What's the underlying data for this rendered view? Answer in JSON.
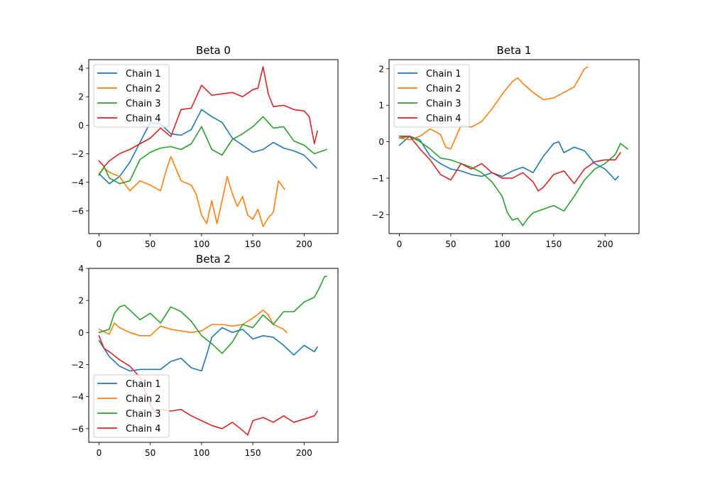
{
  "colors": {
    "Chain 1": "#1f77b4",
    "Chain 2": "#ff7f0e",
    "Chain 3": "#2ca02c",
    "Chain 4": "#d62728"
  },
  "chart_data": [
    {
      "type": "line",
      "title": "Beta 0",
      "xlabel": "",
      "ylabel": "",
      "xlim": [
        -10,
        233
      ],
      "ylim": [
        -7.6,
        4.6
      ],
      "xticks": [
        0,
        50,
        100,
        150,
        200
      ],
      "yticks": [
        -6,
        -4,
        -2,
        0,
        2,
        4
      ],
      "legend_position": "upper-left",
      "series": [
        {
          "name": "Chain 1",
          "x": [
            0,
            10,
            20,
            30,
            40,
            50,
            60,
            70,
            80,
            90,
            100,
            110,
            120,
            130,
            140,
            150,
            160,
            170,
            180,
            190,
            200,
            212
          ],
          "y": [
            -3.4,
            -4.1,
            -3.6,
            -2.6,
            -1.2,
            0.2,
            0.1,
            -0.6,
            -0.7,
            -0.3,
            1.1,
            0.6,
            0.2,
            -0.9,
            -1.4,
            -1.9,
            -1.7,
            -1.2,
            -1.6,
            -1.8,
            -2.1,
            -3.0
          ]
        },
        {
          "name": "Chain 2",
          "x": [
            0,
            5,
            10,
            20,
            30,
            40,
            50,
            60,
            65,
            70,
            80,
            90,
            95,
            100,
            105,
            110,
            115,
            120,
            125,
            130,
            135,
            140,
            145,
            150,
            155,
            160,
            165,
            170,
            175,
            181
          ],
          "y": [
            -3.4,
            -3.0,
            -3.3,
            -3.6,
            -4.6,
            -3.9,
            -4.2,
            -4.6,
            -3.3,
            -2.2,
            -3.9,
            -4.2,
            -4.9,
            -6.3,
            -6.9,
            -5.3,
            -6.9,
            -5.3,
            -3.6,
            -4.8,
            -5.7,
            -5.0,
            -6.3,
            -6.6,
            -5.9,
            -7.1,
            -6.5,
            -6.1,
            -3.9,
            -4.5
          ]
        },
        {
          "name": "Chain 3",
          "x": [
            0,
            5,
            10,
            15,
            20,
            30,
            40,
            50,
            60,
            70,
            80,
            90,
            100,
            110,
            120,
            130,
            140,
            150,
            160,
            170,
            180,
            190,
            200,
            210,
            222
          ],
          "y": [
            -3.5,
            -2.9,
            -3.7,
            -3.9,
            -4.1,
            -3.9,
            -2.4,
            -1.9,
            -1.6,
            -1.5,
            -1.7,
            -1.3,
            -0.1,
            -1.7,
            -2.1,
            -1.0,
            -0.6,
            -0.1,
            0.6,
            -0.2,
            -0.1,
            -1.1,
            -1.4,
            -2.0,
            -1.7
          ]
        },
        {
          "name": "Chain 4",
          "x": [
            0,
            5,
            10,
            20,
            30,
            40,
            50,
            60,
            70,
            80,
            90,
            100,
            110,
            120,
            130,
            140,
            150,
            155,
            160,
            165,
            170,
            180,
            190,
            200,
            205,
            210,
            213
          ],
          "y": [
            -2.5,
            -2.9,
            -2.5,
            -2.0,
            -1.7,
            -1.3,
            -0.9,
            -0.2,
            -0.8,
            1.1,
            1.2,
            2.8,
            2.1,
            2.2,
            2.3,
            2.0,
            2.5,
            2.6,
            4.1,
            2.2,
            1.3,
            1.4,
            1.1,
            1.0,
            0.6,
            -1.3,
            -0.4
          ]
        }
      ]
    },
    {
      "type": "line",
      "title": "Beta 1",
      "xlabel": "",
      "ylabel": "",
      "xlim": [
        -10,
        233
      ],
      "ylim": [
        -2.52,
        2.25
      ],
      "xticks": [
        0,
        50,
        100,
        150,
        200
      ],
      "yticks": [
        -2,
        -1,
        0,
        1,
        2
      ],
      "legend_position": "upper-left",
      "series": [
        {
          "name": "Chain 1",
          "x": [
            0,
            10,
            20,
            30,
            40,
            50,
            60,
            70,
            80,
            90,
            100,
            110,
            120,
            130,
            140,
            150,
            155,
            160,
            170,
            180,
            190,
            200,
            210,
            213
          ],
          "y": [
            -0.1,
            0.15,
            0.05,
            -0.4,
            -0.6,
            -0.75,
            -0.8,
            -0.9,
            -0.95,
            -0.85,
            -0.95,
            -0.8,
            -0.7,
            -0.85,
            -0.4,
            -0.05,
            0.0,
            -0.3,
            -0.15,
            -0.25,
            -0.6,
            -0.75,
            -1.05,
            -0.95
          ]
        },
        {
          "name": "Chain 2",
          "x": [
            0,
            10,
            20,
            30,
            40,
            45,
            50,
            60,
            70,
            80,
            90,
            100,
            110,
            115,
            120,
            130,
            140,
            150,
            160,
            170,
            180,
            183
          ],
          "y": [
            0.1,
            0.05,
            0.15,
            0.35,
            0.2,
            -0.15,
            -0.2,
            0.45,
            0.4,
            0.55,
            0.9,
            1.3,
            1.65,
            1.75,
            1.6,
            1.35,
            1.15,
            1.2,
            1.35,
            1.5,
            2.0,
            2.05
          ]
        },
        {
          "name": "Chain 3",
          "x": [
            0,
            10,
            20,
            30,
            40,
            50,
            60,
            70,
            80,
            90,
            100,
            105,
            110,
            115,
            120,
            125,
            130,
            140,
            150,
            160,
            170,
            180,
            190,
            200,
            210,
            215,
            222
          ],
          "y": [
            0.1,
            0.15,
            0.0,
            -0.2,
            -0.45,
            -0.5,
            -0.6,
            -0.7,
            -0.85,
            -1.1,
            -1.5,
            -1.95,
            -2.15,
            -2.1,
            -2.3,
            -2.1,
            -1.95,
            -1.85,
            -1.75,
            -1.9,
            -1.5,
            -1.05,
            -0.75,
            -0.6,
            -0.35,
            -0.05,
            -0.2
          ]
        },
        {
          "name": "Chain 4",
          "x": [
            0,
            10,
            20,
            30,
            40,
            50,
            60,
            70,
            80,
            90,
            100,
            110,
            120,
            130,
            135,
            140,
            150,
            160,
            170,
            180,
            190,
            200,
            210,
            215
          ],
          "y": [
            0.15,
            0.15,
            -0.2,
            -0.5,
            -0.9,
            -1.05,
            -0.6,
            -0.75,
            -0.6,
            -0.85,
            -1.0,
            -1.0,
            -0.85,
            -1.1,
            -1.35,
            -1.25,
            -0.9,
            -0.8,
            -1.15,
            -0.75,
            -0.55,
            -0.5,
            -0.5,
            -0.3
          ]
        }
      ]
    },
    {
      "type": "line",
      "title": "Beta 2",
      "xlabel": "",
      "ylabel": "",
      "xlim": [
        -10,
        233
      ],
      "ylim": [
        -6.85,
        4.0
      ],
      "xticks": [
        0,
        50,
        100,
        150,
        200
      ],
      "yticks": [
        -6,
        -4,
        -2,
        0,
        2,
        4
      ],
      "legend_position": "lower-left",
      "series": [
        {
          "name": "Chain 1",
          "x": [
            0,
            10,
            20,
            30,
            40,
            50,
            60,
            70,
            80,
            90,
            100,
            105,
            110,
            120,
            130,
            140,
            150,
            160,
            170,
            180,
            190,
            200,
            210,
            213
          ],
          "y": [
            -0.5,
            -1.5,
            -2.1,
            -2.4,
            -2.3,
            -2.3,
            -2.3,
            -1.8,
            -1.6,
            -2.2,
            -2.4,
            -1.4,
            -0.3,
            0.3,
            0.0,
            0.2,
            -0.4,
            -0.2,
            -0.3,
            -0.8,
            -1.4,
            -0.8,
            -1.2,
            -0.9
          ]
        },
        {
          "name": "Chain 2",
          "x": [
            0,
            10,
            15,
            20,
            30,
            40,
            50,
            60,
            70,
            80,
            90,
            100,
            110,
            120,
            130,
            140,
            150,
            160,
            165,
            170,
            180,
            183
          ],
          "y": [
            0.2,
            -0.1,
            0.6,
            0.3,
            0.0,
            -0.2,
            -0.2,
            0.4,
            0.2,
            0.1,
            0.0,
            0.1,
            0.5,
            0.5,
            0.4,
            0.5,
            0.9,
            1.4,
            1.1,
            0.5,
            0.2,
            0.0
          ]
        },
        {
          "name": "Chain 3",
          "x": [
            0,
            10,
            15,
            20,
            25,
            30,
            40,
            50,
            60,
            70,
            80,
            90,
            100,
            110,
            120,
            130,
            140,
            150,
            160,
            170,
            180,
            190,
            200,
            210,
            215,
            220,
            222
          ],
          "y": [
            0.0,
            0.2,
            1.2,
            1.6,
            1.7,
            1.4,
            0.8,
            1.2,
            0.6,
            1.6,
            1.3,
            0.7,
            -0.2,
            -0.7,
            -1.3,
            -0.6,
            0.5,
            0.3,
            1.1,
            0.5,
            1.3,
            1.3,
            1.9,
            2.2,
            2.8,
            3.5,
            3.5
          ]
        },
        {
          "name": "Chain 4",
          "x": [
            0,
            5,
            10,
            20,
            30,
            40,
            50,
            55,
            60,
            70,
            80,
            90,
            100,
            110,
            120,
            130,
            140,
            145,
            150,
            160,
            170,
            180,
            190,
            200,
            210,
            213
          ],
          "y": [
            -0.2,
            -1.0,
            -1.2,
            -1.7,
            -2.1,
            -2.8,
            -4.5,
            -5.0,
            -4.8,
            -4.9,
            -4.8,
            -5.2,
            -5.5,
            -5.8,
            -6.0,
            -5.6,
            -6.1,
            -6.4,
            -5.5,
            -5.3,
            -5.6,
            -5.2,
            -5.6,
            -5.4,
            -5.2,
            -4.9
          ]
        }
      ]
    }
  ]
}
